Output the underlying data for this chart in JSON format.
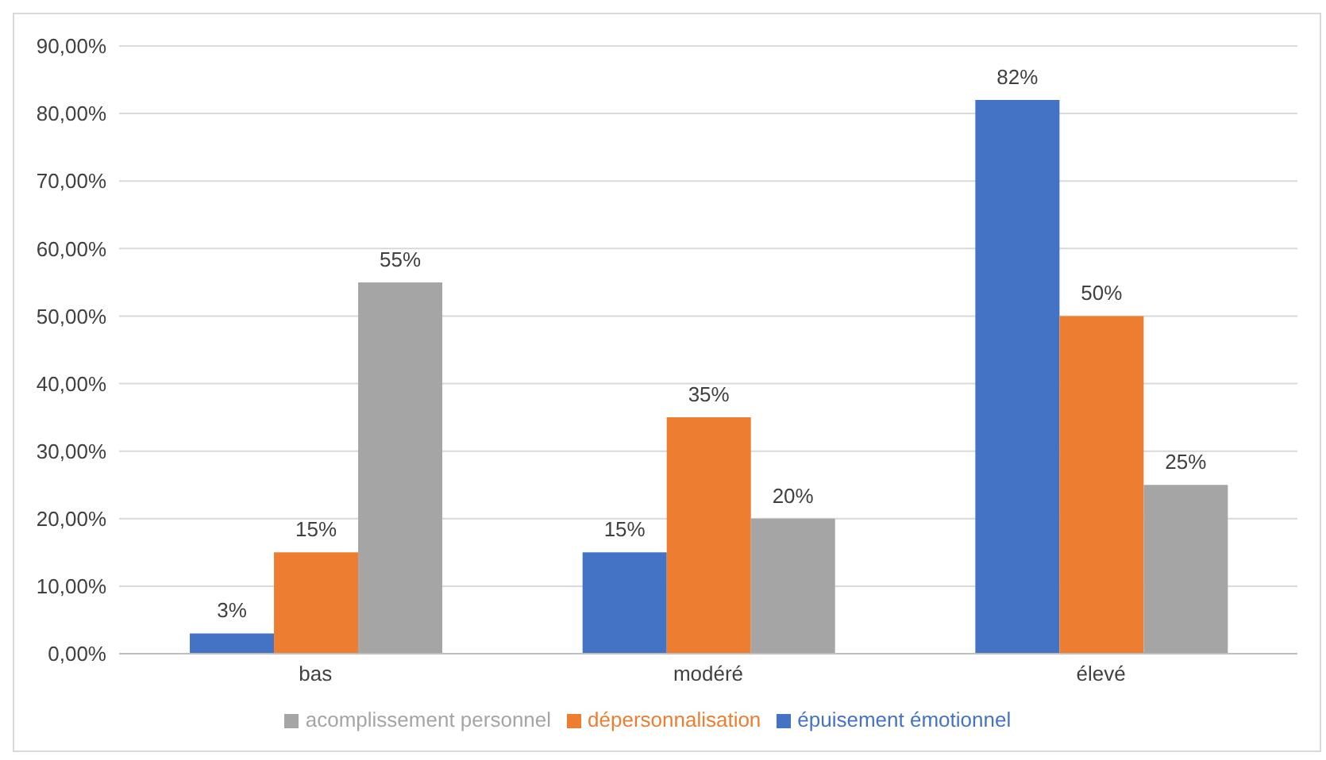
{
  "chart_data": {
    "type": "bar",
    "categories": [
      "bas",
      "modéré",
      "élevé"
    ],
    "series": [
      {
        "name": "épuisement émotionnel",
        "color": "#4472c4",
        "values": [
          3,
          15,
          82
        ],
        "value_labels": [
          "3%",
          "15%",
          "82%"
        ]
      },
      {
        "name": "dépersonnalisation",
        "color": "#ed7d31",
        "values": [
          15,
          35,
          50
        ],
        "value_labels": [
          "15%",
          "35%",
          "50%"
        ]
      },
      {
        "name": "acomplissement personnel",
        "color": "#a5a5a5",
        "values": [
          55,
          20,
          25
        ],
        "value_labels": [
          "55%",
          "20%",
          "25%"
        ]
      }
    ],
    "ylim": [
      0,
      90
    ],
    "yticks": [
      {
        "value": 0,
        "label": "0,00%"
      },
      {
        "value": 10,
        "label": "10,00%"
      },
      {
        "value": 20,
        "label": "20,00%"
      },
      {
        "value": 30,
        "label": "30,00%"
      },
      {
        "value": 40,
        "label": "40,00%"
      },
      {
        "value": 50,
        "label": "50,00%"
      },
      {
        "value": 60,
        "label": "60,00%"
      },
      {
        "value": 70,
        "label": "70,00%"
      },
      {
        "value": 80,
        "label": "80,00%"
      },
      {
        "value": 90,
        "label": "90,00%"
      }
    ],
    "grid": "y",
    "legend": "bottom"
  }
}
